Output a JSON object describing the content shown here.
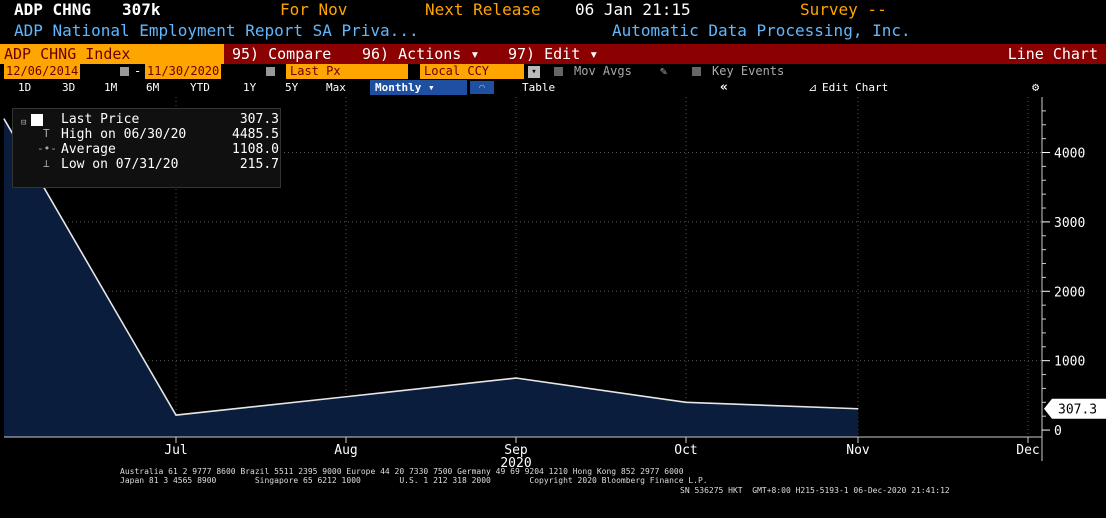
{
  "header": {
    "ticker": "ADP CHNG",
    "value": "307k",
    "for_label": "For Nov",
    "next_release_label": "Next Release",
    "next_release_value": "06 Jan 21:15",
    "survey_label": "Survey --",
    "description": "ADP National Employment Report SA Priva...",
    "company": "Automatic Data Processing, Inc."
  },
  "toolbar": {
    "index": "ADP CHNG Index",
    "compare": "95) Compare",
    "actions": "96) Actions ▾",
    "edit": "97) Edit ▾",
    "chart_type": "Line Chart"
  },
  "range": {
    "start": "12/06/2014",
    "end": "11/30/2020",
    "field": "Last Px",
    "currency": "Local CCY",
    "mov_avgs": "Mov Avgs",
    "key_events": "Key Events"
  },
  "periods": {
    "items": [
      "1D",
      "3D",
      "1M",
      "6M",
      "YTD",
      "1Y",
      "5Y",
      "Max"
    ],
    "frequency": "Monthly ▾",
    "table": "Table",
    "collapse": "«",
    "edit_chart": "Edit Chart"
  },
  "legend": {
    "last_label": "Last Price",
    "last_value": "307.3",
    "high_label": "High on 06/30/20",
    "high_value": "4485.5",
    "avg_label": "Average",
    "avg_value": "1108.0",
    "low_label": "Low on 07/31/20",
    "low_value": "215.7"
  },
  "chart_data": {
    "type": "area",
    "x": [
      "Jun",
      "Jul",
      "Aug",
      "Sep",
      "Oct",
      "Nov"
    ],
    "values": [
      4485.5,
      215.7,
      480,
      750,
      400,
      307.3
    ],
    "x_ticks": [
      "Jul",
      "Aug",
      "Sep",
      "Oct",
      "Nov",
      "Dec"
    ],
    "year_label": "2020",
    "y_ticks": [
      0,
      1000,
      2000,
      3000,
      4000
    ],
    "ylim": [
      -100,
      4800
    ],
    "last_value_label": "307.3",
    "colors": {
      "fill": "#0b1d3c",
      "line": "#e6e6e6"
    },
    "grid": true
  },
  "footer": {
    "line1": "Australia 61 2 9777 8600 Brazil 5511 2395 9000 Europe 44 20 7330 7500 Germany 49 69 9204 1210 Hong Kong 852 2977 6000",
    "line2": "Japan 81 3 4565 8900        Singapore 65 6212 1000        U.S. 1 212 318 2000        Copyright 2020 Bloomberg Finance L.P.",
    "line3": "SN 536275 HKT  GMT+8:00 H215-5193-1 06-Dec-2020 21:41:12"
  }
}
